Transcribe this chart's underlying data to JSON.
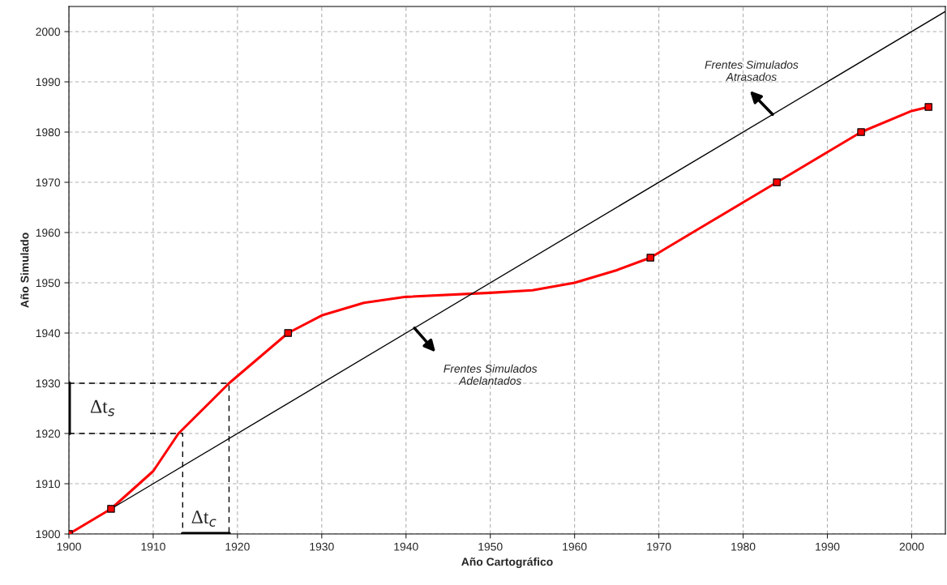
{
  "chart_data": {
    "type": "line",
    "xlabel": "Año Cartográfico",
    "ylabel": "Año Simulado",
    "xlim": [
      1900,
      2004
    ],
    "ylim": [
      1900,
      2005
    ],
    "xticks": [
      1900,
      1910,
      1920,
      1930,
      1940,
      1950,
      1960,
      1970,
      1980,
      1990,
      2000
    ],
    "yticks": [
      1900,
      1910,
      1920,
      1930,
      1940,
      1950,
      1960,
      1970,
      1980,
      1990,
      2000
    ],
    "grid": true,
    "series": [
      {
        "color": "#ff0000",
        "line_style": "solid",
        "x": [
          1900,
          1905,
          1910,
          1913,
          1919,
          1926,
          1930,
          1935,
          1940,
          1950,
          1955,
          1960,
          1965,
          1969,
          1975,
          1980,
          1984,
          1990,
          1994,
          2000,
          2002
        ],
        "values": [
          1900,
          1905,
          1912.5,
          1920,
          1930,
          1940,
          1943.5,
          1946,
          1947.2,
          1948,
          1948.5,
          1950,
          1952.5,
          1955,
          1961,
          1966,
          1970,
          1976,
          1980,
          1984.2,
          1985
        ]
      },
      {
        "type": "scatter",
        "color": "#ff0000",
        "marker": "square",
        "x": [
          1900,
          1905,
          1926,
          1969,
          1984,
          1994,
          2002
        ],
        "values": [
          1900,
          1905,
          1940,
          1955,
          1970,
          1980,
          1985
        ]
      },
      {
        "type": "line",
        "color": "#000000",
        "line_style": "solid",
        "x": [
          1905,
          2004
        ],
        "values": [
          1905,
          2004
        ]
      },
      {
        "type": "line",
        "color": "#000000",
        "line_style": "dashed",
        "x": [
          1900,
          1919,
          1919
        ],
        "values": [
          1930,
          1930,
          1900
        ]
      },
      {
        "type": "line",
        "color": "#000000",
        "line_style": "dashed",
        "x": [
          1900,
          1913.5,
          1913.5
        ],
        "values": [
          1920,
          1920,
          1900
        ]
      },
      {
        "type": "line",
        "color": "#000000",
        "line_style": "solid",
        "x": [
          1900,
          1900
        ],
        "values": [
          1920,
          1930
        ]
      },
      {
        "type": "line",
        "color": "#000000",
        "line_style": "solid",
        "x": [
          1913.5,
          1919
        ],
        "values": [
          1900,
          1900
        ]
      }
    ],
    "annotations": [
      {
        "text": "Frentes Simulados\nAtrasados",
        "x": 1983.5,
        "y": 1983.5
      },
      "Frentes Simulados\nAdelantados",
      "Δt$_{s}$",
      "Δt$_{c}$"
    ]
  }
}
